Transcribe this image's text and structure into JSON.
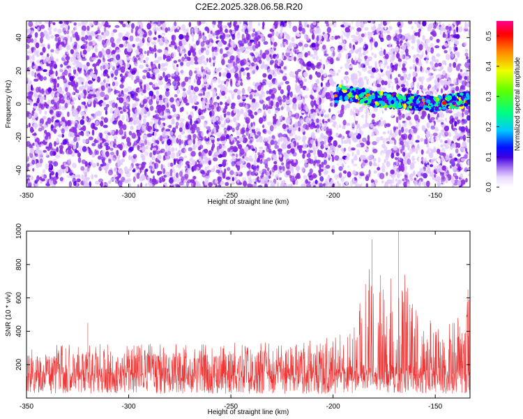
{
  "title": "C2E2.2025.328.06.58.R20",
  "chart_data": [
    {
      "type": "heatmap",
      "title": "C2E2.2025.328.06.58.R20",
      "xlabel": "Height of straight line (km)",
      "ylabel": "Frequency (Hz)",
      "xlim": [
        -350,
        -133
      ],
      "ylim": [
        -50,
        50
      ],
      "x_ticks": [
        -350,
        -300,
        -250,
        -200,
        -150
      ],
      "y_ticks": [
        -40,
        -20,
        0,
        20,
        40
      ],
      "colorbar": {
        "label": "Normalized spectral amplitude",
        "range": [
          0,
          0.55
        ],
        "ticks": [
          0,
          0.1,
          0.2,
          0.3,
          0.4,
          0.5
        ],
        "colors": [
          "#ffffff",
          "#e0c8ff",
          "#8a2be2",
          "#5a00e8",
          "#0000ff",
          "#00c0ff",
          "#00ff80",
          "#80ff00",
          "#ffff00",
          "#ff8000",
          "#ff0000",
          "#ff00a0"
        ]
      },
      "background_amplitude": 0.1,
      "signal_band": {
        "x_range": [
          -199,
          -133
        ],
        "center_frequency": [
          {
            "x": -198,
            "y": 7
          },
          {
            "x": -190,
            "y": 6
          },
          {
            "x": -180,
            "y": 3
          },
          {
            "x": -170,
            "y": 2
          },
          {
            "x": -160,
            "y": 1
          },
          {
            "x": -150,
            "y": 0
          },
          {
            "x": -140,
            "y": 2
          },
          {
            "x": -133,
            "y": 3
          }
        ],
        "width_hz": 8,
        "peak_amplitude": 0.5
      },
      "grid": false
    },
    {
      "type": "line",
      "xlabel": "Height of straight line (km)",
      "ylabel": "SNR (10 * v/v)",
      "xlim": [
        -350,
        -133
      ],
      "ylim": [
        0,
        1000
      ],
      "x_ticks": [
        -350,
        -300,
        -250,
        -200,
        -150
      ],
      "y_ticks": [
        200,
        400,
        600,
        800,
        1000
      ],
      "series": [
        {
          "color": "#ee3333",
          "envelope": [
            {
              "x": -350,
              "max": 310
            },
            {
              "x": -330,
              "max": 320
            },
            {
              "x": -315,
              "max": 330
            },
            {
              "x": -300,
              "max": 320
            },
            {
              "x": -280,
              "max": 330
            },
            {
              "x": -260,
              "max": 320
            },
            {
              "x": -240,
              "max": 340
            },
            {
              "x": -220,
              "max": 340
            },
            {
              "x": -205,
              "max": 350
            },
            {
              "x": -198,
              "max": 400
            },
            {
              "x": -190,
              "max": 520
            },
            {
              "x": -183,
              "max": 760
            },
            {
              "x": -179,
              "max": 950
            },
            {
              "x": -175,
              "max": 620
            },
            {
              "x": -171,
              "max": 830
            },
            {
              "x": -168,
              "max": 1000
            },
            {
              "x": -165,
              "max": 780
            },
            {
              "x": -160,
              "max": 600
            },
            {
              "x": -155,
              "max": 520
            },
            {
              "x": -150,
              "max": 420
            },
            {
              "x": -140,
              "max": 460
            },
            {
              "x": -133,
              "max": 650
            }
          ],
          "spikes": [
            {
              "x": -320,
              "y": 450
            },
            {
              "x": -181,
              "y": 950
            },
            {
              "x": -168,
              "y": 1000
            },
            {
              "x": -134,
              "y": 650
            }
          ],
          "baseline_mean": 130
        }
      ],
      "grid": false
    }
  ]
}
